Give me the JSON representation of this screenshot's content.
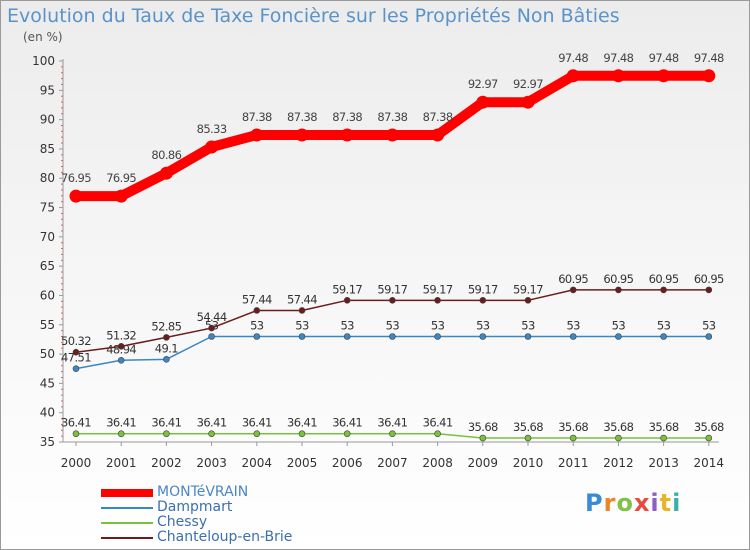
{
  "page": {
    "title": "Evolution du Taux de Taxe Foncière sur les Propriétés Non Bâties",
    "unit": "(en %)",
    "brand": {
      "letters": [
        "P",
        "r",
        "o",
        "x",
        "i",
        "t",
        "i"
      ],
      "colors": [
        "#3a8bd6",
        "#e8862a",
        "#7fc24a",
        "#e84a3c",
        "#8d5fbf",
        "#e8b52a",
        "#3ab0a8"
      ]
    }
  },
  "chart_data": {
    "type": "line",
    "title": "Evolution du Taux de Taxe Foncière sur les Propriétés Non Bâties",
    "ylabel": "(en %)",
    "xlabel": "",
    "ylim": [
      35,
      100
    ],
    "yticks": [
      35,
      40,
      45,
      50,
      55,
      60,
      65,
      70,
      75,
      80,
      85,
      90,
      95,
      100
    ],
    "grid": false,
    "legend_position": "bottom-left",
    "x": [
      "2000",
      "2001",
      "2002",
      "2003",
      "2004",
      "2005",
      "2006",
      "2007",
      "2008",
      "2009",
      "2010",
      "2011",
      "2012",
      "2013",
      "2014"
    ],
    "series": [
      {
        "name": "MONTéVRAIN",
        "color": "#ff0000",
        "emphasis": true,
        "values": [
          76.95,
          76.95,
          80.86,
          85.33,
          87.38,
          87.38,
          87.38,
          87.38,
          87.38,
          92.97,
          92.97,
          97.48,
          97.48,
          97.48,
          97.48
        ],
        "labels": [
          "76.95",
          "76.95",
          "80.86",
          "85.33",
          "87.38",
          "87.38",
          "87.38",
          "87.38",
          "87.38",
          "92.97",
          "92.97",
          "97.48",
          "97.48",
          "97.48",
          "97.48"
        ]
      },
      {
        "name": "Dampmart",
        "color": "#3b86c4",
        "emphasis": false,
        "values": [
          47.51,
          48.94,
          49.1,
          53,
          53,
          53,
          53,
          53,
          53,
          53,
          53,
          53,
          53,
          53,
          53
        ],
        "labels": [
          "47.51",
          "48.94",
          "49.1",
          "53",
          "53",
          "53",
          "53",
          "53",
          "53",
          "53",
          "53",
          "53",
          "53",
          "53",
          "53"
        ]
      },
      {
        "name": "Chessy",
        "color": "#79c23b",
        "emphasis": false,
        "values": [
          36.41,
          36.41,
          36.41,
          36.41,
          36.41,
          36.41,
          36.41,
          36.41,
          36.41,
          35.68,
          35.68,
          35.68,
          35.68,
          35.68,
          35.68
        ],
        "labels": [
          "36.41",
          "36.41",
          "36.41",
          "36.41",
          "36.41",
          "36.41",
          "36.41",
          "36.41",
          "36.41",
          "35.68",
          "35.68",
          "35.68",
          "35.68",
          "35.68",
          "35.68"
        ]
      },
      {
        "name": "Chanteloup-en-Brie",
        "color": "#6b1c1c",
        "emphasis": false,
        "values": [
          50.32,
          51.32,
          52.85,
          54.44,
          57.44,
          57.44,
          59.17,
          59.17,
          59.17,
          59.17,
          59.17,
          60.95,
          60.95,
          60.95,
          60.95
        ],
        "labels": [
          "50.32",
          "51.32",
          "52.85",
          "54.44",
          "57.44",
          "57.44",
          "59.17",
          "59.17",
          "59.17",
          "59.17",
          "59.17",
          "60.95",
          "60.95",
          "60.95",
          "60.95"
        ]
      }
    ]
  }
}
